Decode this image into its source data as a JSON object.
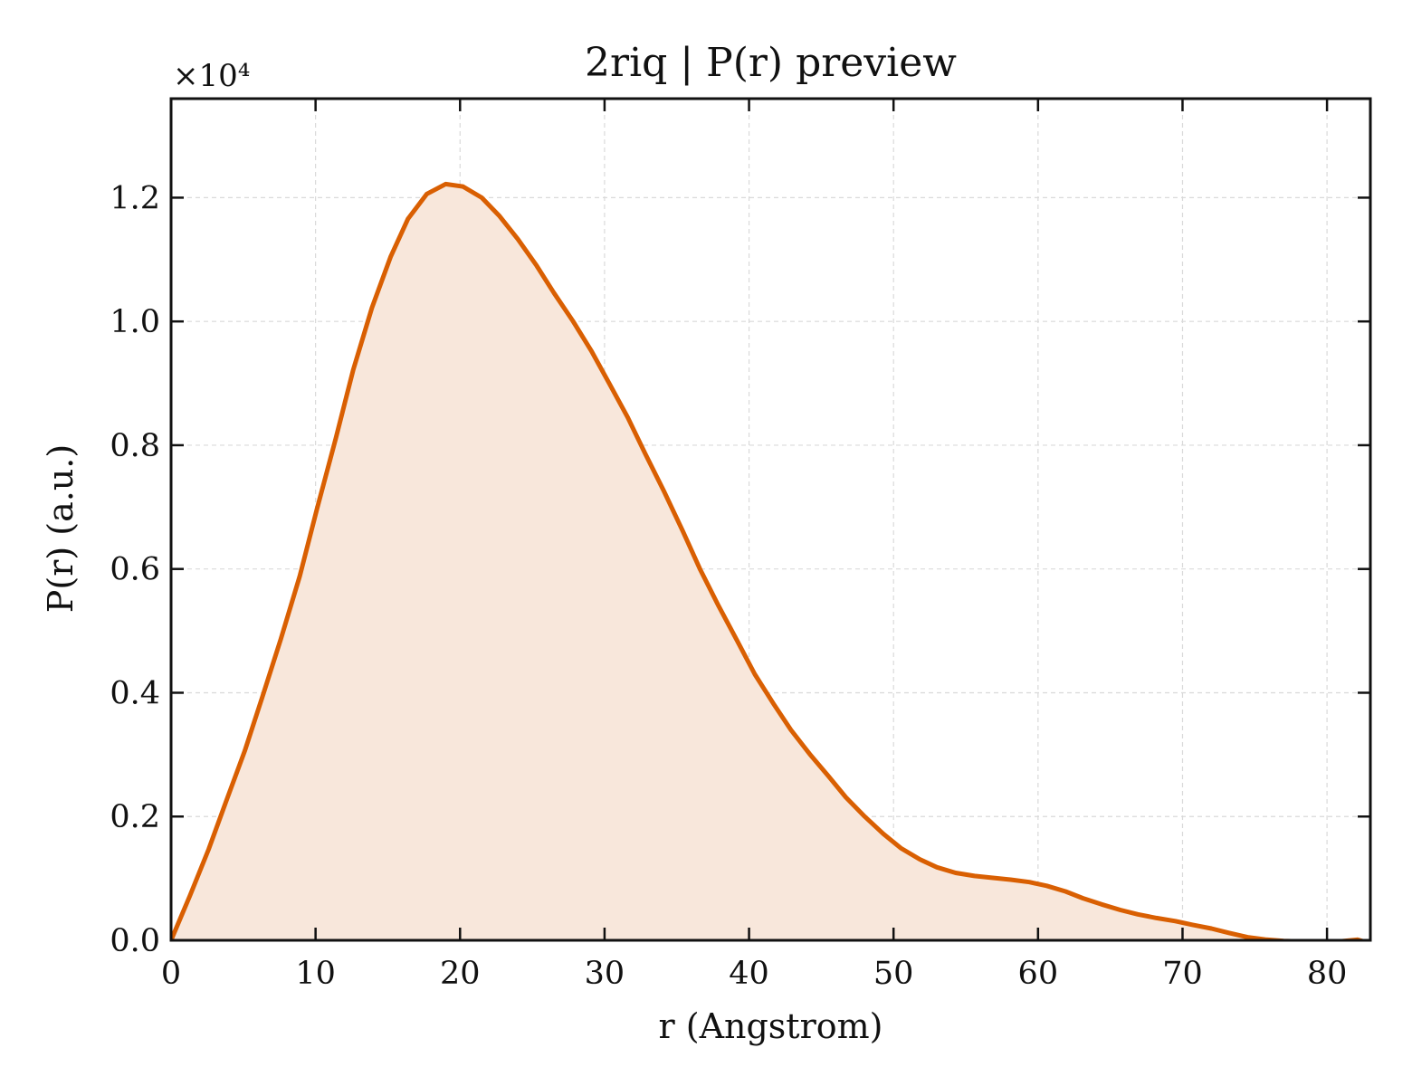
{
  "chart_data": {
    "type": "area",
    "title": "2riq | P(r) preview",
    "xlabel": "r (Angstrom)",
    "ylabel": "P(r) (a.u.)",
    "y_multiplier": "×10⁴",
    "xlim": [
      0,
      83
    ],
    "ylim": [
      0,
      1.36
    ],
    "xticks": [
      0,
      10,
      20,
      30,
      40,
      50,
      60,
      70,
      80
    ],
    "xtick_labels": [
      "0",
      "10",
      "20",
      "30",
      "40",
      "50",
      "60",
      "70",
      "80"
    ],
    "yticks": [
      0.0,
      0.2,
      0.4,
      0.6,
      0.8,
      1.0,
      1.2
    ],
    "ytick_labels": [
      "0.0",
      "0.2",
      "0.4",
      "0.6",
      "0.8",
      "1.0",
      "1.2"
    ],
    "grid": true,
    "colors": {
      "line": "#d95f02",
      "fill": "#f8e7db",
      "grid": "#d9d9d9"
    },
    "series": [
      {
        "x": [
          0,
          1.3,
          2.6,
          3.8,
          5.1,
          6.3,
          7.6,
          8.9,
          10.1,
          11.4,
          12.6,
          13.9,
          15.2,
          16.4,
          17.7,
          19.0,
          20.2,
          21.5,
          22.7,
          24.0,
          25.3,
          26.5,
          27.8,
          29.1,
          30.3,
          31.6,
          32.8,
          34.1,
          35.4,
          36.6,
          37.9,
          39.2,
          40.4,
          41.7,
          42.9,
          44.2,
          45.5,
          46.7,
          48.0,
          49.3,
          50.5,
          51.8,
          53.0,
          54.3,
          55.6,
          56.8,
          58.1,
          59.4,
          60.6,
          61.9,
          63.1,
          64.4,
          65.7,
          66.9,
          68.2,
          69.5,
          70.7,
          72.0,
          73.2,
          74.5,
          75.8,
          77.0,
          78.3,
          79.5,
          80.8,
          82.1,
          83.0
        ],
        "y": [
          0.0,
          0.072,
          0.147,
          0.224,
          0.306,
          0.392,
          0.487,
          0.588,
          0.697,
          0.811,
          0.921,
          1.022,
          1.105,
          1.166,
          1.206,
          1.222,
          1.218,
          1.2,
          1.171,
          1.133,
          1.09,
          1.046,
          1.001,
          0.952,
          0.901,
          0.845,
          0.787,
          0.726,
          0.662,
          0.6,
          0.54,
          0.483,
          0.43,
          0.382,
          0.34,
          0.301,
          0.265,
          0.231,
          0.2,
          0.172,
          0.149,
          0.131,
          0.118,
          0.109,
          0.104,
          0.101,
          0.098,
          0.094,
          0.088,
          0.079,
          0.068,
          0.058,
          0.049,
          0.042,
          0.036,
          0.031,
          0.025,
          0.019,
          0.012,
          0.005,
          0.001,
          -0.001,
          -0.002,
          -0.002,
          -0.002,
          0.001,
          -0.005
        ]
      }
    ]
  }
}
